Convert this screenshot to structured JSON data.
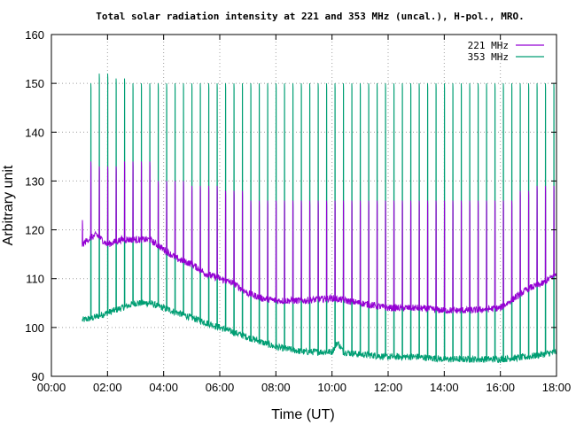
{
  "chart_data": {
    "type": "line",
    "title": "Total solar radiation intensity at 221 and 353 MHz (uncal.), H-pol., MRO.",
    "xlabel": "Time (UT)",
    "ylabel": "Arbitrary unit",
    "xlim": [
      0,
      18
    ],
    "ylim": [
      90,
      160
    ],
    "x_ticks": [
      "00:00",
      "02:00",
      "04:00",
      "06:00",
      "08:00",
      "10:00",
      "12:00",
      "14:00",
      "16:00",
      "18:00"
    ],
    "y_ticks": [
      90,
      100,
      110,
      120,
      130,
      140,
      150,
      160
    ],
    "grid": true,
    "legend_position": "top-right",
    "series": [
      {
        "name": "221 MHz",
        "color": "#9400d3",
        "baseline": [
          [
            1.1,
            117
          ],
          [
            1.3,
            118
          ],
          [
            1.6,
            119
          ],
          [
            1.8,
            118
          ],
          [
            2.0,
            117
          ],
          [
            2.5,
            118
          ],
          [
            3.0,
            118
          ],
          [
            3.5,
            118
          ],
          [
            4.0,
            116
          ],
          [
            4.5,
            114
          ],
          [
            5.0,
            113
          ],
          [
            5.5,
            111
          ],
          [
            6.0,
            110
          ],
          [
            6.5,
            109
          ],
          [
            7.0,
            107
          ],
          [
            7.5,
            106
          ],
          [
            8.0,
            105.5
          ],
          [
            9.0,
            105.5
          ],
          [
            10.0,
            106
          ],
          [
            11.0,
            105
          ],
          [
            12.0,
            104
          ],
          [
            13.0,
            104
          ],
          [
            14.0,
            103.5
          ],
          [
            15.0,
            103.5
          ],
          [
            16.0,
            104
          ],
          [
            16.5,
            106
          ],
          [
            17.0,
            108
          ],
          [
            17.5,
            109
          ],
          [
            18.0,
            111
          ]
        ],
        "spike_peaks": [
          [
            1.1,
            122
          ],
          [
            1.4,
            134
          ],
          [
            1.7,
            133
          ],
          [
            2.0,
            133
          ],
          [
            2.3,
            133
          ],
          [
            2.6,
            134
          ],
          [
            2.9,
            134
          ],
          [
            3.2,
            134
          ],
          [
            3.5,
            134
          ],
          [
            3.8,
            130
          ],
          [
            4.1,
            130
          ],
          [
            4.4,
            130
          ],
          [
            4.7,
            130
          ],
          [
            5.0,
            129
          ],
          [
            5.3,
            129
          ],
          [
            5.6,
            129
          ],
          [
            5.9,
            129
          ],
          [
            6.2,
            128
          ],
          [
            6.5,
            128
          ],
          [
            6.8,
            128
          ],
          [
            7.1,
            126
          ],
          [
            7.4,
            126
          ],
          [
            7.7,
            126
          ],
          [
            8.0,
            126
          ],
          [
            8.3,
            126
          ],
          [
            8.6,
            126
          ],
          [
            8.9,
            126
          ],
          [
            9.2,
            126
          ],
          [
            9.5,
            126
          ],
          [
            9.8,
            126
          ],
          [
            10.1,
            126
          ],
          [
            10.4,
            126
          ],
          [
            10.7,
            126
          ],
          [
            11.0,
            126
          ],
          [
            11.3,
            126
          ],
          [
            11.6,
            126
          ],
          [
            11.9,
            126
          ],
          [
            12.2,
            126
          ],
          [
            12.5,
            126
          ],
          [
            12.8,
            126
          ],
          [
            13.1,
            126
          ],
          [
            13.4,
            126
          ],
          [
            13.7,
            126
          ],
          [
            14.0,
            126
          ],
          [
            14.3,
            126
          ],
          [
            14.6,
            126
          ],
          [
            14.9,
            126
          ],
          [
            15.2,
            126
          ],
          [
            15.5,
            126
          ],
          [
            15.8,
            126
          ],
          [
            16.1,
            126
          ],
          [
            16.4,
            126
          ],
          [
            16.7,
            128
          ],
          [
            17.0,
            128
          ],
          [
            17.3,
            129
          ],
          [
            17.6,
            129
          ],
          [
            17.9,
            129
          ]
        ]
      },
      {
        "name": "353 MHz",
        "color": "#009e73",
        "baseline": [
          [
            1.1,
            101.5
          ],
          [
            1.5,
            102
          ],
          [
            2.0,
            103
          ],
          [
            2.5,
            104
          ],
          [
            3.0,
            105
          ],
          [
            3.5,
            105
          ],
          [
            4.0,
            104
          ],
          [
            4.5,
            103
          ],
          [
            5.0,
            102
          ],
          [
            5.5,
            101
          ],
          [
            6.0,
            100
          ],
          [
            6.5,
            99
          ],
          [
            7.0,
            98
          ],
          [
            7.5,
            97
          ],
          [
            8.0,
            96
          ],
          [
            9.0,
            95
          ],
          [
            10.0,
            95
          ],
          [
            10.2,
            97
          ],
          [
            10.4,
            95
          ],
          [
            11.0,
            94.5
          ],
          [
            12.0,
            94
          ],
          [
            13.0,
            94
          ],
          [
            14.0,
            93.5
          ],
          [
            15.0,
            93.5
          ],
          [
            16.0,
            93.5
          ],
          [
            17.0,
            94
          ],
          [
            18.0,
            95
          ]
        ],
        "spike_peaks": [
          [
            1.4,
            150
          ],
          [
            1.7,
            152
          ],
          [
            2.0,
            152
          ],
          [
            2.3,
            151
          ],
          [
            2.6,
            151
          ],
          [
            2.9,
            150
          ],
          [
            3.2,
            150
          ],
          [
            3.5,
            150
          ],
          [
            3.8,
            150
          ],
          [
            4.1,
            150
          ],
          [
            4.4,
            150
          ],
          [
            4.7,
            150
          ],
          [
            5.0,
            150
          ],
          [
            5.3,
            150
          ],
          [
            5.6,
            150
          ],
          [
            5.9,
            150
          ],
          [
            6.2,
            150
          ],
          [
            6.5,
            150
          ],
          [
            6.8,
            150
          ],
          [
            7.1,
            150
          ],
          [
            7.4,
            150
          ],
          [
            7.7,
            150
          ],
          [
            8.0,
            150
          ],
          [
            8.3,
            150
          ],
          [
            8.6,
            150
          ],
          [
            8.9,
            150
          ],
          [
            9.2,
            150
          ],
          [
            9.5,
            150
          ],
          [
            9.8,
            150
          ],
          [
            10.1,
            150
          ],
          [
            10.4,
            150
          ],
          [
            10.7,
            150
          ],
          [
            11.0,
            150
          ],
          [
            11.3,
            150
          ],
          [
            11.6,
            150
          ],
          [
            11.9,
            150
          ],
          [
            12.2,
            150
          ],
          [
            12.5,
            150
          ],
          [
            12.8,
            150
          ],
          [
            13.1,
            150
          ],
          [
            13.4,
            150
          ],
          [
            13.7,
            150
          ],
          [
            14.0,
            150
          ],
          [
            14.3,
            150
          ],
          [
            14.6,
            150
          ],
          [
            14.9,
            150
          ],
          [
            15.2,
            150
          ],
          [
            15.5,
            150
          ],
          [
            15.8,
            150
          ],
          [
            16.1,
            150
          ],
          [
            16.4,
            150
          ],
          [
            16.7,
            150
          ],
          [
            17.0,
            150
          ],
          [
            17.3,
            150
          ],
          [
            17.6,
            150
          ],
          [
            17.9,
            150
          ]
        ]
      }
    ]
  }
}
